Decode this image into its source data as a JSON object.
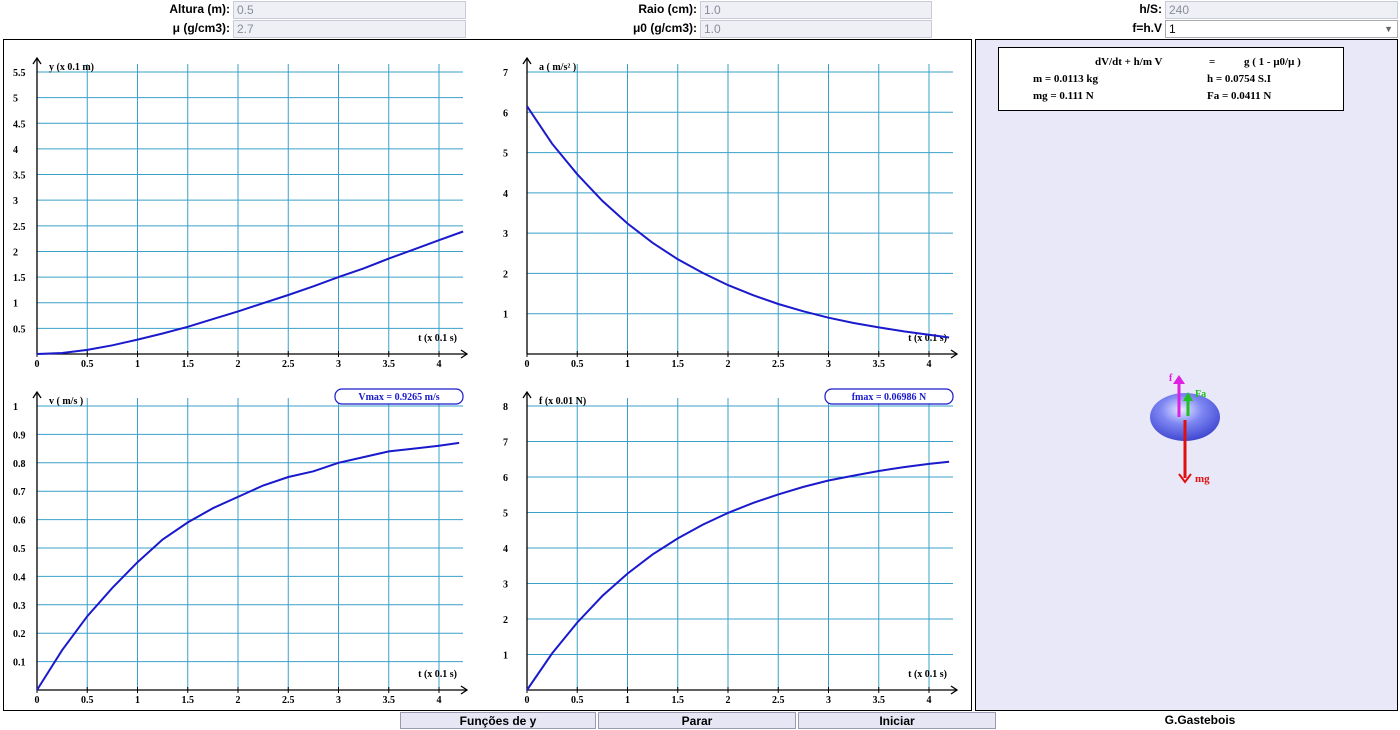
{
  "controls": {
    "altura": {
      "label": "Altura (m):",
      "value": "0.5"
    },
    "mu": {
      "label": "μ (g/cm3):",
      "value": "2.7"
    },
    "raio": {
      "label": "Raio (cm):",
      "value": "1.0"
    },
    "mu0": {
      "label": "μ0 (g/cm3):",
      "value": "1.0"
    },
    "hs": {
      "label": "h/S:",
      "value": "240"
    },
    "f_law": {
      "label": "f=h.V",
      "value": "1"
    }
  },
  "equation": {
    "line1_left": "dV/dt + h/m V",
    "line1_eq": "=",
    "line1_right": "g ( 1 - μ0/μ )",
    "m": "m = 0.0113 kg",
    "h": "h = 0.0754 S.I",
    "mg": "mg = 0.111 N",
    "fa": "Fa = 0.0411 N"
  },
  "forces": {
    "f": "f",
    "fa": "Fa",
    "mg": "mg"
  },
  "buttons": {
    "funcoes": "Funções de y",
    "parar": "Parar",
    "iniciar": "Iniciar"
  },
  "credit": "G.Gastebois",
  "colors": {
    "grid": "#3aa0c8",
    "curve": "#1a1acc",
    "ball": "#6f78f0",
    "f_arrow": "#e020e0",
    "fa_arrow": "#20c020",
    "mg_arrow": "#e01010"
  },
  "chart_data": [
    {
      "type": "line",
      "ylabel": "y (x 0.1 m)",
      "xlabel": "t (x 0.1 s)",
      "xticks": [
        "0",
        "0.5",
        "1",
        "1.5",
        "2",
        "2.5",
        "3",
        "3.5",
        "4"
      ],
      "yticks": [
        "0.5",
        "1",
        "1.5",
        "2",
        "2.5",
        "3",
        "3.5",
        "4",
        "4.5",
        "5",
        "5.5"
      ],
      "xlim": [
        0,
        4.25
      ],
      "ylim": [
        0,
        6
      ],
      "x": [
        0,
        0.25,
        0.5,
        0.75,
        1,
        1.25,
        1.5,
        1.75,
        2,
        2.25,
        2.5,
        2.75,
        3,
        3.25,
        3.5,
        3.75,
        4,
        4.24
      ],
      "values": [
        0.0,
        0.02,
        0.08,
        0.17,
        0.28,
        0.4,
        0.53,
        0.68,
        0.83,
        0.99,
        1.15,
        1.32,
        1.5,
        1.67,
        1.86,
        2.04,
        2.22,
        2.39
      ]
    },
    {
      "type": "line",
      "ylabel": "a ( m/s² )",
      "xlabel": "t (x 0.1 s)",
      "xticks": [
        "0",
        "0.5",
        "1",
        "1.5",
        "2",
        "2.5",
        "3",
        "3.5",
        "4"
      ],
      "yticks": [
        "1",
        "2",
        "3",
        "4",
        "5",
        "6",
        "7"
      ],
      "xlim": [
        0,
        4.25
      ],
      "ylim": [
        0,
        7.3
      ],
      "x": [
        0,
        0.25,
        0.5,
        0.75,
        1,
        1.25,
        1.5,
        1.75,
        2,
        2.25,
        2.5,
        2.75,
        3,
        3.25,
        3.5,
        3.75,
        4,
        4.2
      ],
      "values": [
        6.15,
        5.22,
        4.46,
        3.8,
        3.24,
        2.76,
        2.35,
        2.01,
        1.71,
        1.46,
        1.24,
        1.06,
        0.9,
        0.77,
        0.66,
        0.56,
        0.48,
        0.41
      ]
    },
    {
      "type": "line",
      "ylabel": "v ( m/s )",
      "xlabel": "t (x 0.1 s)",
      "annotation": "Vmax = 0.9265 m/s",
      "xticks": [
        "0",
        "0.5",
        "1",
        "1.5",
        "2",
        "2.5",
        "3",
        "3.5",
        "4"
      ],
      "yticks": [
        "0.1",
        "0.2",
        "0.3",
        "0.4",
        "0.5",
        "0.6",
        "0.7",
        "0.8",
        "0.9",
        "1"
      ],
      "xlim": [
        0,
        4.25
      ],
      "ylim": [
        0,
        1.07
      ],
      "x": [
        0,
        0.25,
        0.5,
        0.75,
        1,
        1.25,
        1.5,
        1.75,
        2,
        2.25,
        2.5,
        2.75,
        3,
        3.25,
        3.5,
        3.75,
        4,
        4.2
      ],
      "values": [
        0.0,
        0.14,
        0.26,
        0.36,
        0.45,
        0.53,
        0.59,
        0.64,
        0.68,
        0.72,
        0.75,
        0.77,
        0.8,
        0.82,
        0.84,
        0.85,
        0.86,
        0.87
      ]
    },
    {
      "type": "line",
      "ylabel": "f (x 0.01 N)",
      "xlabel": "t (x 0.1 s)",
      "annotation": "fmax = 0.06986 N",
      "xticks": [
        "0",
        "0.5",
        "1",
        "1.5",
        "2",
        "2.5",
        "3",
        "3.5",
        "4"
      ],
      "yticks": [
        "1",
        "2",
        "3",
        "4",
        "5",
        "6",
        "7",
        "8"
      ],
      "xlim": [
        0,
        4.25
      ],
      "ylim": [
        0,
        8.3
      ],
      "x": [
        0,
        0.25,
        0.5,
        0.75,
        1,
        1.25,
        1.5,
        1.75,
        2,
        2.25,
        2.5,
        2.75,
        3,
        3.25,
        3.5,
        3.75,
        4,
        4.2
      ],
      "values": [
        0.0,
        1.03,
        1.9,
        2.65,
        3.28,
        3.82,
        4.27,
        4.66,
        4.99,
        5.27,
        5.51,
        5.72,
        5.9,
        6.04,
        6.17,
        6.28,
        6.37,
        6.43
      ]
    }
  ]
}
